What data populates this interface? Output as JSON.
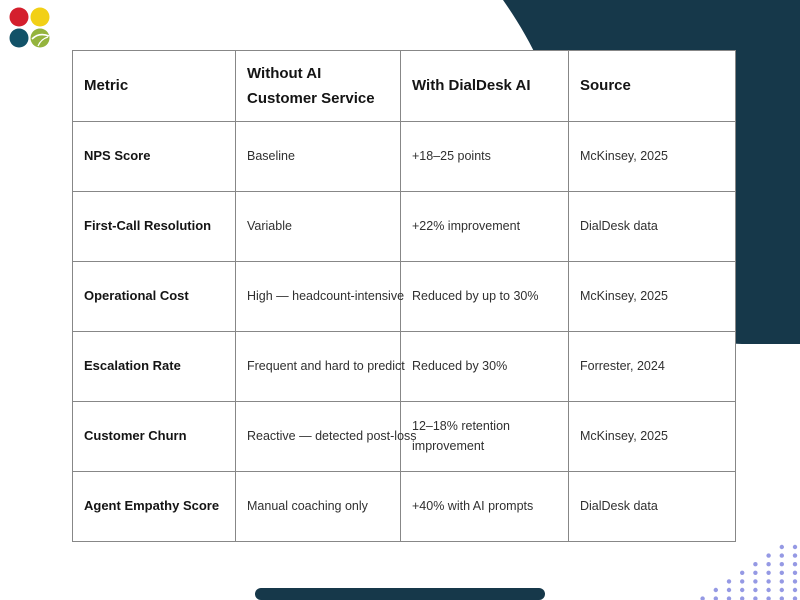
{
  "logo": {
    "dots": [
      {
        "name": "red",
        "color": "#d41f2d"
      },
      {
        "name": "yellow",
        "color": "#f2d016"
      },
      {
        "name": "teal",
        "color": "#125268"
      },
      {
        "name": "green",
        "color": "#94b43d"
      }
    ]
  },
  "decor": {
    "blob_color": "#16384a",
    "bottom_bar_color": "#16384a",
    "dots_color": "#8a8ee1"
  },
  "table": {
    "headers": [
      "Metric",
      "Without AI Customer Service",
      "With DialDesk AI",
      "Source"
    ],
    "rows": [
      [
        "NPS Score",
        "Baseline",
        "+18–25 points",
        "McKinsey, 2025"
      ],
      [
        "First-Call Resolution",
        "Variable",
        "+22% improvement",
        "DialDesk data"
      ],
      [
        "Operational Cost",
        "High — headcount-intensive",
        "Reduced by up to 30%",
        "McKinsey, 2025"
      ],
      [
        "Escalation Rate",
        "Frequent and hard to predict",
        "Reduced by 30%",
        "Forrester, 2024"
      ],
      [
        "Customer Churn",
        "Reactive — detected post-loss",
        "12–18% retention improvement",
        "McKinsey, 2025"
      ],
      [
        "Agent Empathy Score",
        "Manual coaching only",
        "+40% with AI prompts",
        "DialDesk data"
      ]
    ]
  }
}
